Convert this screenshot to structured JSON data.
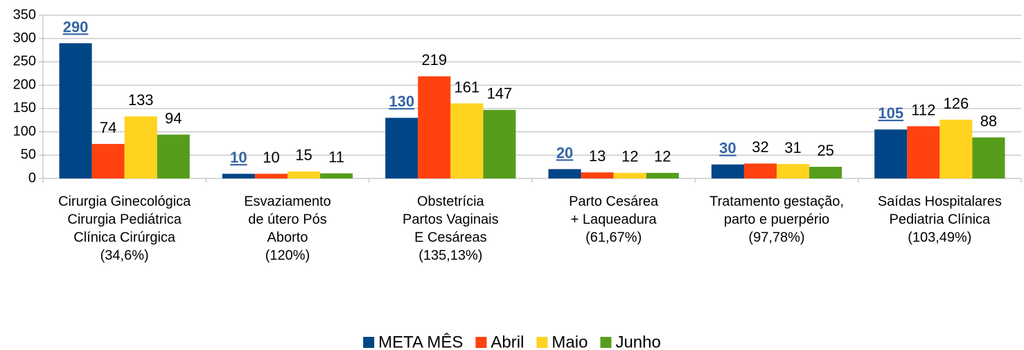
{
  "chart_data": {
    "type": "bar",
    "categories": [
      [
        "Cirurgia Ginecológica",
        "Cirurgia Pediátrica",
        "Clínica Cirúrgica",
        "(34,6%)"
      ],
      [
        "Esvaziamento",
        "de útero Pós",
        "Aborto",
        "(120%)"
      ],
      [
        "Obstetrícia",
        "Partos Vaginais",
        "E Cesáreas",
        "(135,13%)"
      ],
      [
        "Parto Cesárea",
        "+ Laqueadura",
        "(61,67%)"
      ],
      [
        "Tratamento gestação,",
        "parto e puerpério",
        "(97,78%)"
      ],
      [
        "Saídas Hospitalares",
        "Pediatria Clínica",
        "(103,49%)"
      ]
    ],
    "series": [
      {
        "name": "META MÊS",
        "color": "#004586",
        "values": [
          290,
          10,
          130,
          20,
          30,
          105
        ]
      },
      {
        "name": "Abril",
        "color": "#ff420e",
        "values": [
          74,
          10,
          219,
          13,
          32,
          112
        ]
      },
      {
        "name": "Maio",
        "color": "#ffd320",
        "values": [
          133,
          15,
          161,
          12,
          31,
          126
        ]
      },
      {
        "name": "Junho",
        "color": "#579d1c",
        "values": [
          94,
          11,
          147,
          12,
          25,
          88
        ]
      }
    ],
    "ylim": [
      0,
      350
    ],
    "yticks": [
      0,
      50,
      100,
      150,
      200,
      250,
      300,
      350
    ],
    "grid": true,
    "legend": "bottom"
  }
}
